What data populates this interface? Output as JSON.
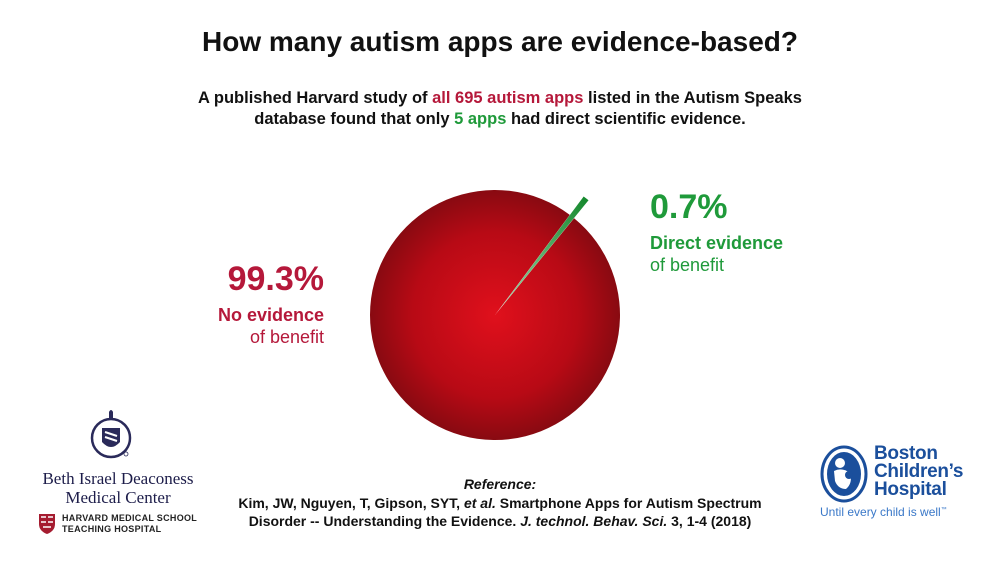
{
  "title": "How many autism apps are evidence-based?",
  "subtitle": {
    "line1_a": "A published Harvard study of ",
    "line1_hl": "all 695 autism apps",
    "line1_b": " listed in the Autism Speaks",
    "line2_a": "database found that only ",
    "line2_hl": "5 apps",
    "line2_b": " had direct scientific evidence."
  },
  "chart_data": {
    "type": "pie",
    "title": "",
    "slices": [
      {
        "name": "No evidence of benefit",
        "value": 99.3,
        "label": "99.3%",
        "color": "#b00d1a"
      },
      {
        "name": "Direct evidence of benefit",
        "value": 0.7,
        "label": "0.7%",
        "color": "#1f9a3a",
        "exploded": true
      }
    ]
  },
  "labels": {
    "left": {
      "pct": "99.3%",
      "line1": "No evidence",
      "line2": "of benefit"
    },
    "right": {
      "pct": "0.7%",
      "line1": "Direct evidence",
      "line2": "of benefit"
    }
  },
  "reference": {
    "heading": "Reference:",
    "line1_a": "Kim, JW, Nguyen, T, Gipson, SYT, ",
    "line1_em": "et al.",
    "line1_b": " Smartphone Apps for Autism Spectrum",
    "line2_a": "Disorder -- Understanding the Evidence. ",
    "line2_em": "J. technol. Behav. Sci.",
    "line2_b": " 3, 1-4 (2018)"
  },
  "logos": {
    "bidmc": {
      "name_line1": "Beth Israel Deaconess",
      "name_line2": "Medical Center",
      "hms_line1": "HARVARD MEDICAL SCHOOL",
      "hms_line2": "TEACHING HOSPITAL"
    },
    "bch": {
      "line1": "Boston",
      "line2": "Children’s",
      "line3": "Hospital",
      "tagline": "Until every child is well",
      "tm": "™"
    }
  },
  "colors": {
    "red": "#b5183a",
    "green": "#1f9a3a",
    "pie_red": "#b00d1a",
    "bch_blue": "#1b4f9c"
  }
}
